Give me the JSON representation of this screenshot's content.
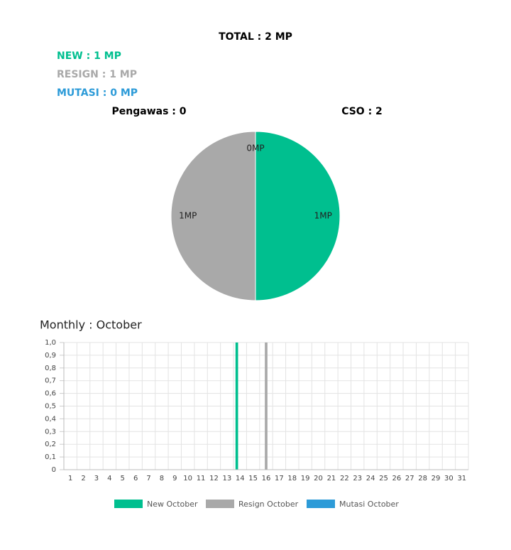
{
  "header": {
    "total": "TOTAL : 2 MP",
    "new": "NEW : 1 MP",
    "resign": "RESIGN : 1 MP",
    "mutasi": "MUTASI : 0 MP",
    "pengawas": "Pengawas : 0",
    "cso": "CSO : 2",
    "monthly": "Monthly : October"
  },
  "chart_data": [
    {
      "type": "pie",
      "series": [
        {
          "name": "New",
          "color": "#00bf8f",
          "values": [
            1
          ],
          "value_labels": [
            "1MP"
          ]
        },
        {
          "name": "Resign",
          "color": "#a9a9a9",
          "values": [
            1
          ],
          "value_labels": [
            "1MP"
          ]
        },
        {
          "name": "Mutasi",
          "color": "#2d9bd8",
          "values": [
            0
          ],
          "value_labels": [
            "0MP"
          ]
        }
      ]
    },
    {
      "type": "bar",
      "categories": [
        "1",
        "2",
        "3",
        "4",
        "5",
        "6",
        "7",
        "8",
        "9",
        "10",
        "11",
        "12",
        "13",
        "14",
        "15",
        "16",
        "17",
        "18",
        "19",
        "20",
        "21",
        "22",
        "23",
        "24",
        "25",
        "26",
        "27",
        "28",
        "29",
        "30",
        "31"
      ],
      "series": [
        {
          "name": "New October",
          "color": "#00bf8f",
          "values": [
            0,
            0,
            0,
            0,
            0,
            0,
            0,
            0,
            0,
            0,
            0,
            0,
            0,
            1,
            0,
            0,
            0,
            0,
            0,
            0,
            0,
            0,
            0,
            0,
            0,
            0,
            0,
            0,
            0,
            0,
            0
          ]
        },
        {
          "name": "Resign October",
          "color": "#a9a9a9",
          "values": [
            0,
            0,
            0,
            0,
            0,
            0,
            0,
            0,
            0,
            0,
            0,
            0,
            0,
            0,
            0,
            1,
            0,
            0,
            0,
            0,
            0,
            0,
            0,
            0,
            0,
            0,
            0,
            0,
            0,
            0,
            0
          ]
        },
        {
          "name": "Mutasi October",
          "color": "#2d9bd8",
          "values": [
            0,
            0,
            0,
            0,
            0,
            0,
            0,
            0,
            0,
            0,
            0,
            0,
            0,
            0,
            0,
            0,
            0,
            0,
            0,
            0,
            0,
            0,
            0,
            0,
            0,
            0,
            0,
            0,
            0,
            0,
            0
          ]
        }
      ],
      "ylim": [
        0,
        1
      ],
      "yticks": [
        0,
        {
          "value": 0.1,
          "label": "0,1"
        },
        {
          "value": 0.2,
          "label": "0,2"
        },
        {
          "value": 0.3,
          "label": "0,3"
        },
        {
          "value": 0.4,
          "label": "0,4"
        },
        {
          "value": 0.5,
          "label": "0,5"
        },
        {
          "value": 0.6,
          "label": "0,6"
        },
        {
          "value": 0.7,
          "label": "0,7"
        },
        {
          "value": 0.8,
          "label": "0,8"
        },
        {
          "value": 0.9,
          "label": "0,9"
        },
        {
          "value": 1,
          "label": "1,0"
        }
      ],
      "grid": true,
      "legend": "bottom"
    }
  ]
}
